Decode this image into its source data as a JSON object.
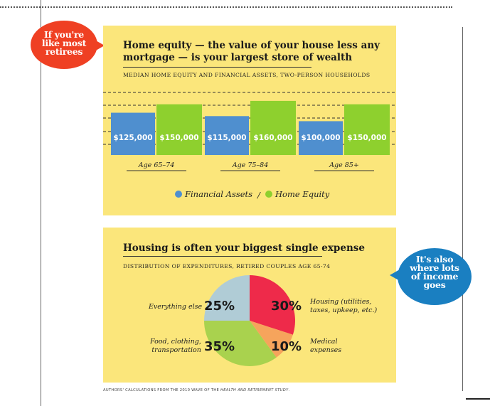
{
  "callouts": {
    "left": [
      "If you're",
      "like most",
      "retirees"
    ],
    "right": [
      "It's also",
      "where lots",
      "of income",
      "goes"
    ]
  },
  "panel1": {
    "title_lines": [
      "Home equity — the value of your house less any",
      "mortgage — is your largest store of wealth"
    ],
    "subtitle": "MEDIAN HOME EQUITY AND FINANCIAL ASSETS, TWO-PERSON HOUSEHOLDS"
  },
  "panel2": {
    "title": "Housing is often your biggest single expense",
    "subtitle": "DISTRIBUTION OF EXPENDITURES, RETIRED COUPLES AGE 65-74"
  },
  "footnote": {
    "prefix": "AUTHORS' CALCULATIONS FROM THE 2010 WAVE OF THE ",
    "italic": "HEALTH AND RETIREMENT STUDY",
    "suffix": "."
  },
  "colors": {
    "panel": "#fbe67b",
    "financial": "#4f8fcf",
    "home": "#8ed02e",
    "housing": "#ee2a4a",
    "medical": "#f6a45c",
    "food": "#a9d24e",
    "everything": "#b0ccd6",
    "callout_red": "#ef4023",
    "callout_blue": "#1a7fc1"
  },
  "chart_data": [
    {
      "type": "bar",
      "title": "Home equity — the value of your house less any mortgage — is your largest store of wealth",
      "subtitle": "MEDIAN HOME EQUITY AND FINANCIAL ASSETS, TWO-PERSON HOUSEHOLDS",
      "categories": [
        "Age 65–74",
        "Age 75–84",
        "Age 85+"
      ],
      "series": [
        {
          "name": "Financial Assets",
          "values": [
            125000,
            115000,
            100000
          ],
          "labels": [
            "$125,000",
            "$115,000",
            "$100,000"
          ]
        },
        {
          "name": "Home Equity",
          "values": [
            150000,
            160000,
            150000
          ],
          "labels": [
            "$150,000",
            "$160,000",
            "$150,000"
          ]
        }
      ],
      "legend_separator": "/",
      "legend": "bottom",
      "grid": "dashed",
      "ylim": [
        0,
        185000
      ]
    },
    {
      "type": "pie",
      "title": "Housing is often your biggest single expense",
      "subtitle": "DISTRIBUTION OF EXPENDITURES, RETIRED COUPLES AGE 65-74",
      "slices": [
        {
          "label": "Housing (utilities, taxes, upkeep, etc.)",
          "label_lines": [
            "Housing (utilities,",
            "taxes, upkeep, etc.)"
          ],
          "value": 30,
          "pct": "30%"
        },
        {
          "label": "Medical expenses",
          "label_lines": [
            "Medical",
            "expenses"
          ],
          "value": 10,
          "pct": "10%"
        },
        {
          "label": "Food, clothing, transportation",
          "label_lines": [
            "Food, clothing,",
            "transportation"
          ],
          "value": 35,
          "pct": "35%"
        },
        {
          "label": "Everything else",
          "label_lines": [
            "Everything else"
          ],
          "value": 25,
          "pct": "25%"
        }
      ]
    }
  ]
}
